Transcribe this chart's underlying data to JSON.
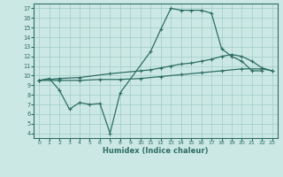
{
  "xlabel": "Humidex (Indice chaleur)",
  "xlim": [
    -0.5,
    23.5
  ],
  "ylim": [
    3.5,
    17.5
  ],
  "xticks": [
    0,
    1,
    2,
    3,
    4,
    5,
    6,
    7,
    8,
    9,
    10,
    11,
    12,
    13,
    14,
    15,
    16,
    17,
    18,
    19,
    20,
    21,
    22,
    23
  ],
  "yticks": [
    4,
    5,
    6,
    7,
    8,
    9,
    10,
    11,
    12,
    13,
    14,
    15,
    16,
    17
  ],
  "bg_color": "#cce8e4",
  "line_color": "#2e6e64",
  "grid_color": "#9eccc6",
  "line1_x": [
    0,
    1,
    2,
    3,
    4,
    5,
    6,
    7,
    8,
    11,
    12,
    13,
    14,
    15,
    16,
    17,
    18,
    19,
    20,
    21,
    22
  ],
  "line1_y": [
    9.5,
    9.7,
    8.5,
    6.5,
    7.2,
    7.0,
    7.1,
    4.0,
    8.2,
    12.5,
    14.8,
    17.0,
    16.8,
    16.8,
    16.8,
    16.5,
    12.8,
    12.0,
    11.5,
    10.5,
    10.5
  ],
  "line2_x": [
    0,
    2,
    4,
    7,
    10,
    11,
    12,
    13,
    14,
    15,
    16,
    17,
    18,
    19,
    20,
    21,
    22,
    23
  ],
  "line2_y": [
    9.5,
    9.7,
    9.8,
    10.2,
    10.5,
    10.6,
    10.8,
    11.0,
    11.2,
    11.3,
    11.5,
    11.7,
    12.0,
    12.2,
    12.0,
    11.5,
    10.8,
    10.5
  ],
  "line3_x": [
    0,
    2,
    4,
    6,
    8,
    10,
    12,
    14,
    16,
    18,
    20,
    22,
    23
  ],
  "line3_y": [
    9.5,
    9.5,
    9.5,
    9.6,
    9.6,
    9.7,
    9.9,
    10.1,
    10.3,
    10.5,
    10.7,
    10.7,
    10.5
  ]
}
